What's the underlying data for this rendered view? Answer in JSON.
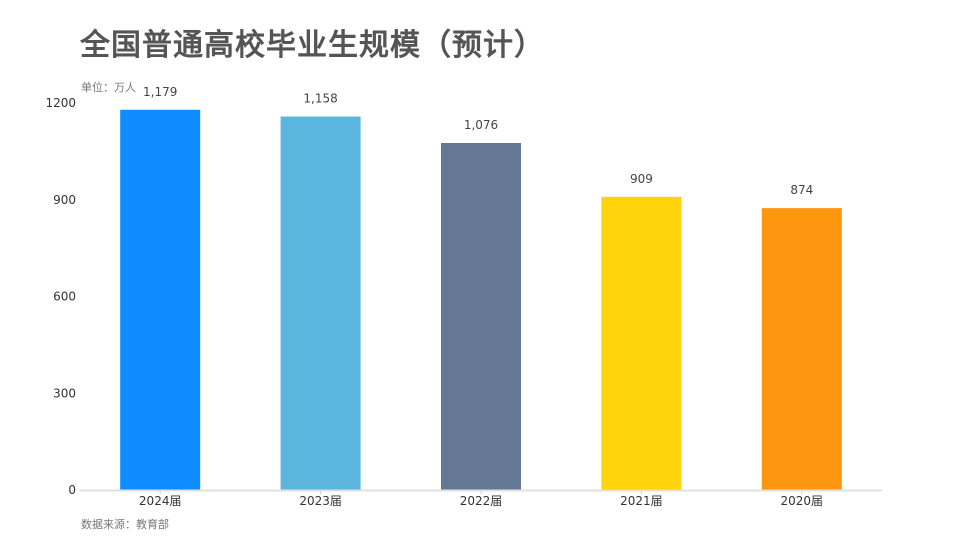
{
  "title": "全国普通高校毕业生规模（预计）",
  "unit_label": "单位：万人",
  "source_label": "数据来源：教育部",
  "chart_data": {
    "type": "bar",
    "title": "全国普通高校毕业生规模（预计）",
    "xlabel": "",
    "ylabel": "单位：万人",
    "categories": [
      "2024届",
      "2023届",
      "2022届",
      "2021届",
      "2020届"
    ],
    "values": [
      1179,
      1158,
      1076,
      909,
      874
    ],
    "data_labels": [
      "1,179",
      "1,158",
      "1,076",
      "909",
      "874"
    ],
    "colors": [
      "#0F8CFF",
      "#5BB5DC",
      "#647896",
      "#FFD30C",
      "#FF960F"
    ],
    "ylim": [
      0,
      1200
    ],
    "yticks": [
      0,
      300,
      600,
      900,
      1200
    ],
    "grid": false,
    "legend": "none"
  }
}
